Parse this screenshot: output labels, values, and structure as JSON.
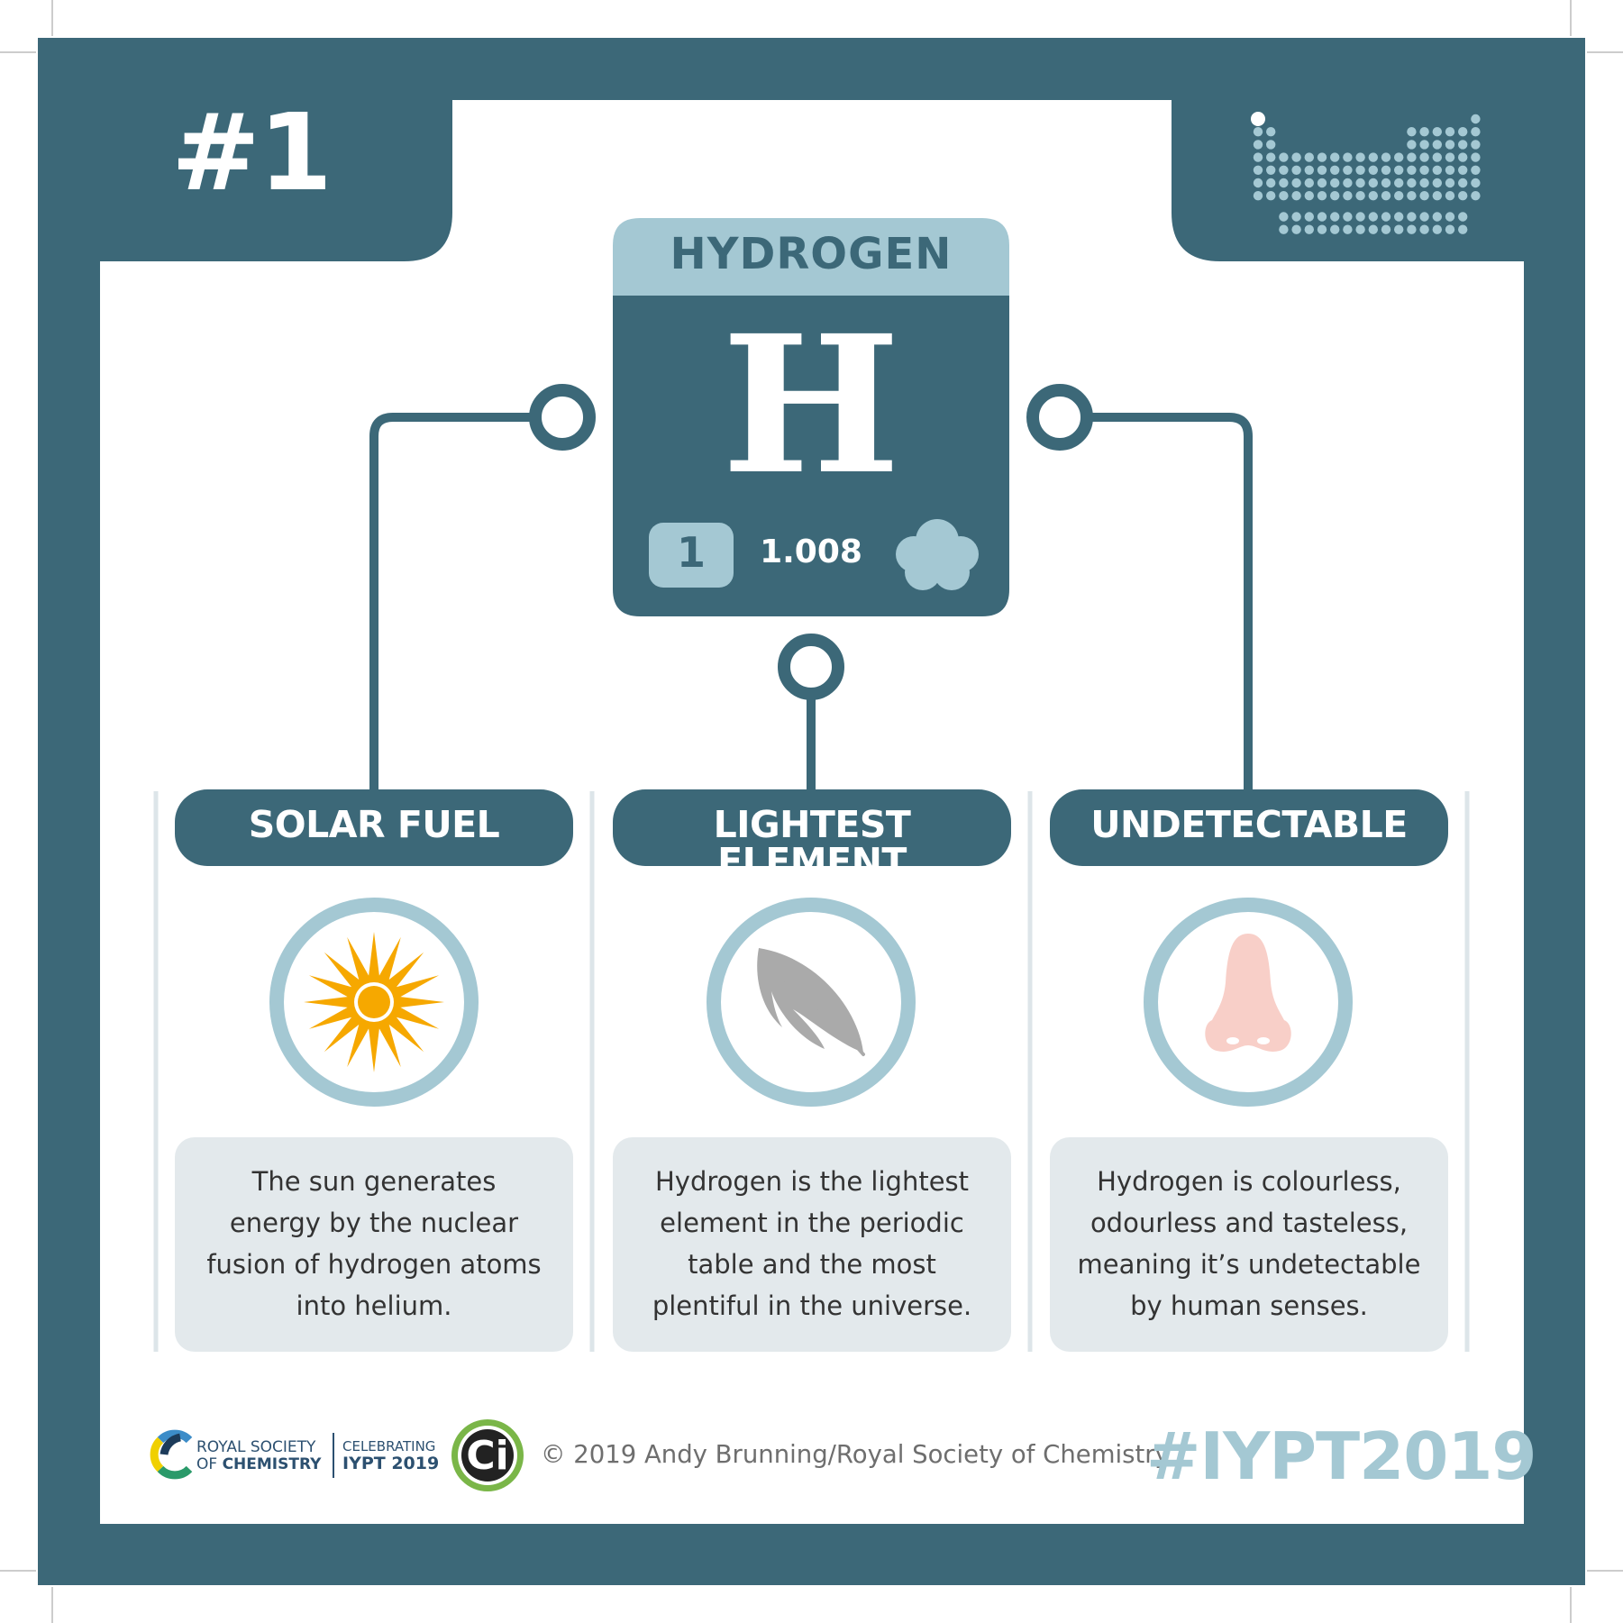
{
  "card": {
    "number": "#1",
    "colors": {
      "dark": "#3c6878",
      "light": "#a4c8d3",
      "panel": "#e3e9ec",
      "sun": "#f6a800",
      "feather": "#aaaaaa",
      "nose": "#f8cfc8"
    }
  },
  "element": {
    "name": "HYDROGEN",
    "symbol": "H",
    "atomic_number": "1",
    "atomic_mass": "1.008",
    "state_icon": "gas-cloud-icon"
  },
  "facts": [
    {
      "title": "SOLAR FUEL",
      "icon": "sun-icon",
      "description": [
        "The sun generates",
        "energy by the nuclear",
        "fusion of hydrogen atoms",
        "into helium."
      ]
    },
    {
      "title": "LIGHTEST ELEMENT",
      "icon": "feather-icon",
      "description": [
        "Hydrogen is the lightest",
        "element in the periodic",
        "table and the most",
        "plentiful in the universe."
      ]
    },
    {
      "title": "UNDETECTABLE",
      "icon": "nose-icon",
      "description": [
        "Hydrogen is colourless,",
        "odourless and tasteless,",
        "meaning it’s undetectable",
        "by human senses."
      ]
    }
  ],
  "footer": {
    "rsc_line1": "ROYAL SOCIETY",
    "rsc_line2_prefix": "OF ",
    "rsc_line2_bold": "CHEMISTRY",
    "celebrating_line1": "CELEBRATING",
    "celebrating_line2": "IYPT 2019",
    "ci_logo": "Ci",
    "copyright": "© 2019 Andy Brunning/Royal Society of Chemistry",
    "hashtag": "#IYPT2019"
  }
}
